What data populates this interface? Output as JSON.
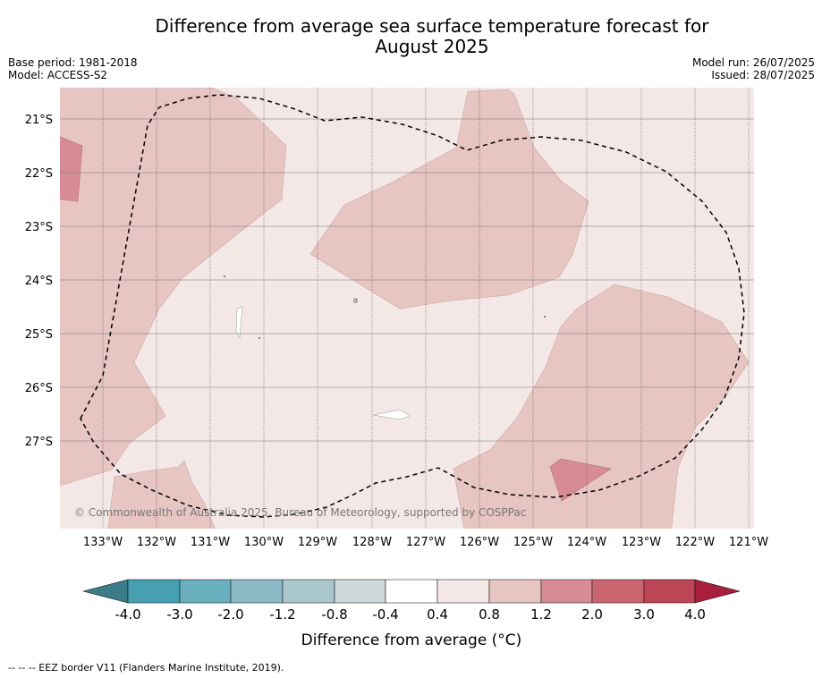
{
  "header": {
    "title_line1": "Difference from average sea surface temperature forecast for",
    "title_line2": "August 2025",
    "base_period": "Base period: 1981-2018",
    "model": "Model: ACCESS-S2",
    "model_run": "Model run: 26/07/2025",
    "issued": "Issued: 28/07/2025"
  },
  "map": {
    "lon_labels": [
      "133°W",
      "132°W",
      "131°W",
      "130°W",
      "129°W",
      "128°W",
      "127°W",
      "126°W",
      "125°W",
      "124°W",
      "123°W",
      "122°W",
      "121°W"
    ],
    "lat_labels": [
      "21°S",
      "22°S",
      "23°S",
      "24°S",
      "25°S",
      "26°S",
      "27°S"
    ],
    "copyright": "© Commonwealth of Australia 2025, Bureau of Meteorology, supported by COSPPac",
    "background_category": "0.4 to 0.8",
    "colors": {
      "c04_08": "#f4e8e7",
      "c08_12": "#e6c5c2",
      "c12_20": "#d78c95"
    }
  },
  "colorbar": {
    "tick_labels": [
      "-4.0",
      "-3.0",
      "-2.0",
      "-1.2",
      "-0.8",
      "-0.4",
      "0.4",
      "0.8",
      "1.2",
      "2.0",
      "3.0",
      "4.0"
    ],
    "colors": [
      "#3b7c88",
      "#47a0b2",
      "#6aafbd",
      "#8cb9c5",
      "#aac8cc",
      "#cfd8da",
      "#ffffff",
      "#f4e8e7",
      "#e6c5c2",
      "#d78c95",
      "#c96670",
      "#bd4656",
      "#a81f3c"
    ],
    "label": "Difference from average (°C)"
  },
  "footnote": "--  --  -- EEZ border V11 (Flanders Marine Institute, 2019)."
}
